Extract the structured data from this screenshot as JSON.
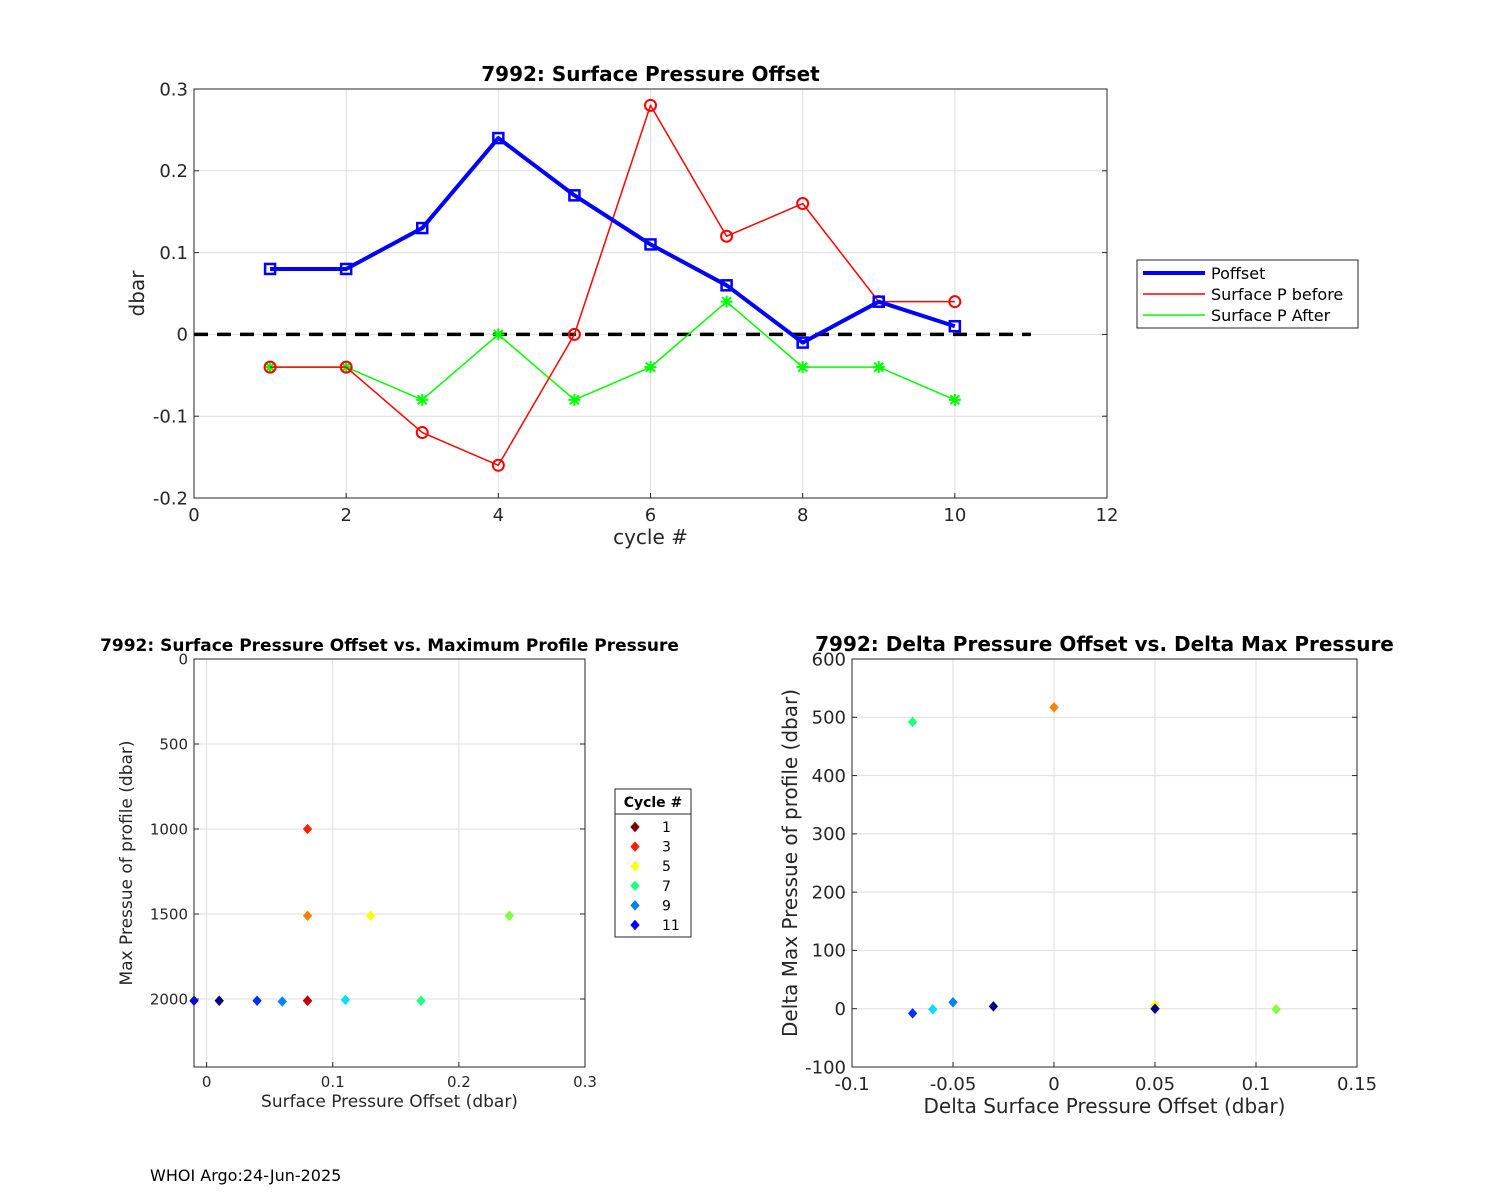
{
  "footer": "WHOI Argo:24-Jun-2025",
  "chart_data": [
    {
      "type": "line",
      "title": "7992: Surface Pressure Offset",
      "xlabel": "cycle #",
      "ylabel": "dbar",
      "xlim": [
        0,
        12
      ],
      "ylim": [
        -0.2,
        0.3
      ],
      "xticks": [
        0,
        2,
        4,
        6,
        8,
        10,
        12
      ],
      "yticks": [
        -0.2,
        -0.1,
        0,
        0.1,
        0.2,
        0.3
      ],
      "xtick_labels": [
        "0",
        "2",
        "4",
        "6",
        "8",
        "10",
        "12"
      ],
      "ytick_labels": [
        "-0.2",
        "-0.1",
        "0",
        "0.1",
        "0.2",
        "0.3"
      ],
      "grid": true,
      "legend_position": "outside-right",
      "reference_line": {
        "y": 0,
        "x": [
          0,
          11
        ],
        "style": "dashed",
        "color": "#000000"
      },
      "x": [
        1,
        2,
        3,
        4,
        5,
        6,
        7,
        8,
        9,
        10
      ],
      "series": [
        {
          "name": "Poffset",
          "color": "#0000ff",
          "marker": "square",
          "width": 4,
          "values": [
            0.08,
            0.08,
            0.13,
            0.24,
            0.17,
            0.11,
            0.06,
            -0.01,
            0.04,
            0.01
          ]
        },
        {
          "name": "Surface P before",
          "color": "#ff0000",
          "marker": "circle",
          "width": 1.5,
          "values": [
            -0.04,
            -0.04,
            -0.12,
            -0.16,
            0.0,
            0.28,
            0.12,
            0.16,
            0.04,
            0.04
          ]
        },
        {
          "name": "Surface P After",
          "color": "#00ff00",
          "marker": "asterisk",
          "width": 1.5,
          "values": [
            -0.04,
            -0.04,
            -0.08,
            0.0,
            -0.08,
            -0.04,
            0.04,
            -0.04,
            -0.04,
            -0.08
          ]
        }
      ]
    },
    {
      "type": "scatter",
      "title": "7992: Surface Pressure Offset vs. Maximum Profile Pressure",
      "xlabel": "Surface Pressure Offset (dbar)",
      "ylabel": "Max Pressue of profile (dbar)",
      "xlim": [
        -0.01,
        0.3
      ],
      "ylim": [
        0,
        2400
      ],
      "y_reversed": true,
      "xticks": [
        0,
        0.1,
        0.2,
        0.3
      ],
      "yticks": [
        0,
        500,
        1000,
        1500,
        2000
      ],
      "xtick_labels": [
        "0",
        "0.1",
        "0.2",
        "0.3"
      ],
      "ytick_labels": [
        "0",
        "500",
        "1000",
        "1500",
        "2000"
      ],
      "grid": true,
      "legend_title": "Cycle #",
      "legend_position": "outside-right",
      "legend": [
        {
          "label": "1",
          "color": "#800000"
        },
        {
          "label": "3",
          "color": "#ff2000"
        },
        {
          "label": "5",
          "color": "#ffff00"
        },
        {
          "label": "7",
          "color": "#20ff80"
        },
        {
          "label": "9",
          "color": "#0080ff"
        },
        {
          "label": "11",
          "color": "#0000ff"
        }
      ],
      "points": [
        {
          "x": 0.08,
          "y": 2010,
          "color": "#800000"
        },
        {
          "x": 0.08,
          "y": 2010,
          "color": "#c00000"
        },
        {
          "x": 0.08,
          "y": 1000,
          "color": "#ff2000"
        },
        {
          "x": 0.08,
          "y": 1510,
          "color": "#ff8000"
        },
        {
          "x": 0.13,
          "y": 1510,
          "color": "#ffff00"
        },
        {
          "x": 0.24,
          "y": 1510,
          "color": "#80ff40"
        },
        {
          "x": 0.17,
          "y": 2010,
          "color": "#20ff80"
        },
        {
          "x": 0.11,
          "y": 2005,
          "color": "#00e0ff"
        },
        {
          "x": 0.06,
          "y": 2015,
          "color": "#0080ff"
        },
        {
          "x": 0.04,
          "y": 2010,
          "color": "#0030ff"
        },
        {
          "x": 0.01,
          "y": 2010,
          "color": "#000080"
        },
        {
          "x": -0.01,
          "y": 2010,
          "color": "#0000ff"
        }
      ]
    },
    {
      "type": "scatter",
      "title": "7992: Delta Pressure Offset vs. Delta Max Pressure",
      "xlabel": "Delta Surface Pressure Offset (dbar)",
      "ylabel": "Delta Max Pressue of profile (dbar)",
      "xlim": [
        -0.1,
        0.15
      ],
      "ylim": [
        -100,
        600
      ],
      "xticks": [
        -0.1,
        -0.05,
        0,
        0.05,
        0.1,
        0.15
      ],
      "yticks": [
        -100,
        0,
        100,
        200,
        300,
        400,
        500,
        600
      ],
      "xtick_labels": [
        "-0.1",
        "-0.05",
        "0",
        "0.05",
        "0.1",
        "0.15"
      ],
      "ytick_labels": [
        "-100",
        "0",
        "100",
        "200",
        "300",
        "400",
        "500",
        "600"
      ],
      "grid": true,
      "points": [
        {
          "x": -0.07,
          "y": 492,
          "color": "#20ff80"
        },
        {
          "x": 0.0,
          "y": 517,
          "color": "#ff8000"
        },
        {
          "x": 0.05,
          "y": 6,
          "color": "#ffff00"
        },
        {
          "x": 0.05,
          "y": 0,
          "color": "#000080"
        },
        {
          "x": 0.11,
          "y": -1,
          "color": "#80ff40"
        },
        {
          "x": -0.03,
          "y": 4,
          "color": "#000080"
        },
        {
          "x": -0.05,
          "y": 11,
          "color": "#0080ff"
        },
        {
          "x": -0.06,
          "y": -1,
          "color": "#00e0ff"
        },
        {
          "x": -0.07,
          "y": -8,
          "color": "#0030ff"
        }
      ]
    }
  ]
}
